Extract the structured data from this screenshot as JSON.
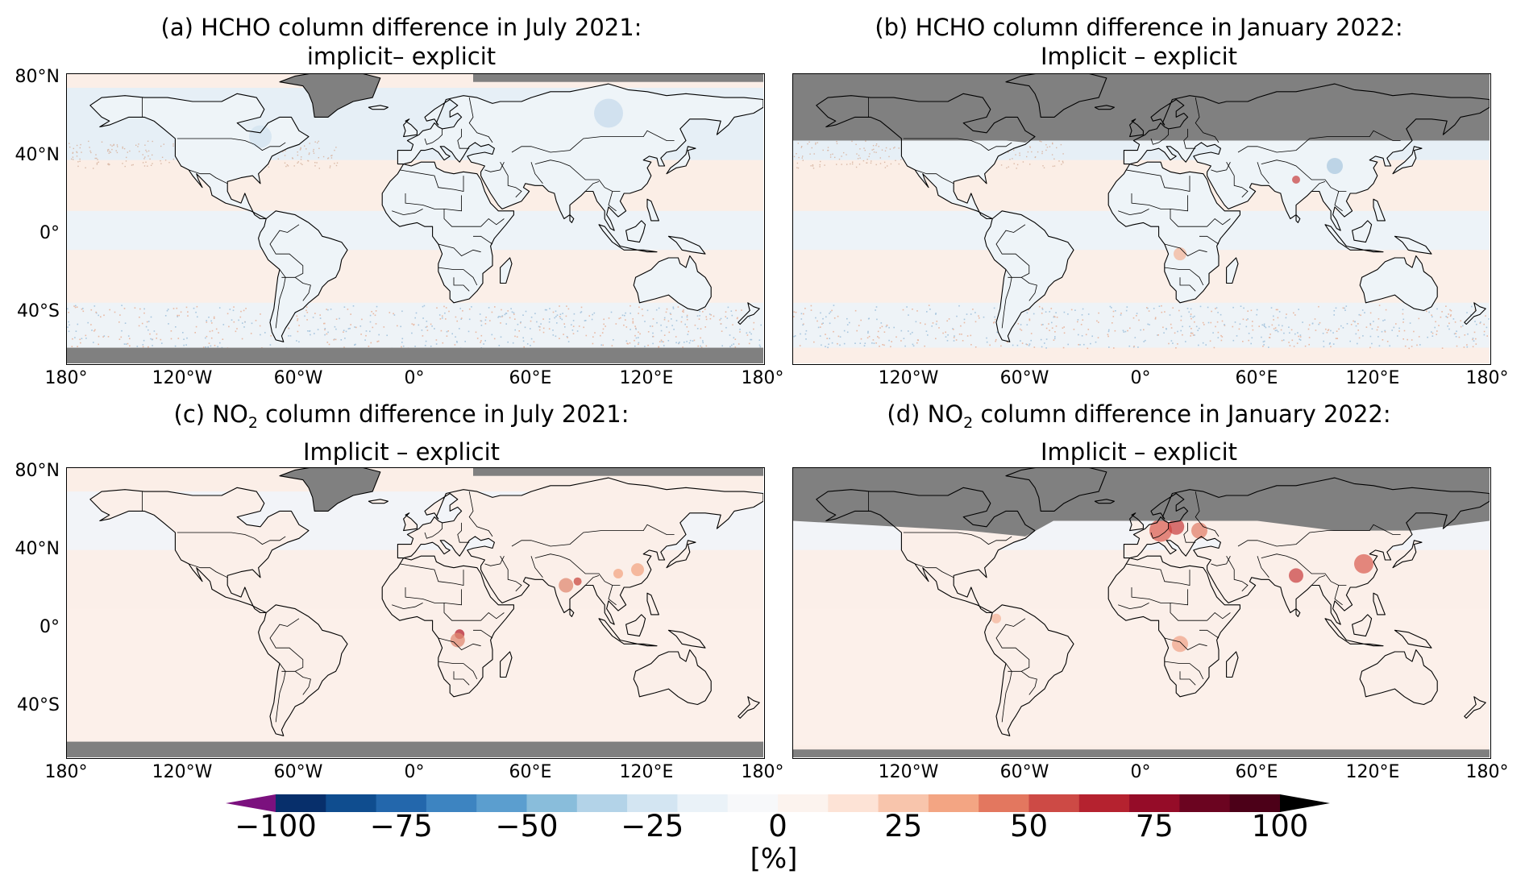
{
  "panels": [
    {
      "title_line1": "(a) HCHO column difference in July 2021:",
      "title_line2": "implicit– explicit",
      "lat_labels": [
        "80°N",
        "40°N",
        "0°",
        "40°S"
      ],
      "lon_labels": [
        "180°",
        "120°W",
        "60°W",
        "0°",
        "60°E",
        "120°E",
        "180°"
      ]
    },
    {
      "title_line1": "(b) HCHO column difference in January 2022:",
      "title_line2": "Implicit – explicit",
      "lat_labels": [],
      "lon_labels": [
        "120°W",
        "60°W",
        "0°",
        "60°E",
        "120°E",
        "180°"
      ]
    },
    {
      "title_pre": "(c) NO",
      "title_sub": "2",
      "title_post": " column difference in July 2021:",
      "title_line2": "Implicit – explicit",
      "lat_labels": [
        "80°N",
        "40°N",
        "0°",
        "40°S"
      ],
      "lon_labels": [
        "180°",
        "120°W",
        "60°W",
        "0°",
        "60°E",
        "120°E",
        "180°"
      ]
    },
    {
      "title_pre": "(d) NO",
      "title_sub": "2",
      "title_post": " column difference in January 2022:",
      "title_line2": "Implicit – explicit",
      "lat_labels": [],
      "lon_labels": [
        "120°W",
        "60°W",
        "0°",
        "60°E",
        "120°E",
        "180°"
      ]
    }
  ],
  "colorbar": {
    "label": "[%]",
    "ticks": [
      "−100",
      "−75",
      "−50",
      "−25",
      "0",
      "25",
      "50",
      "75",
      "100"
    ],
    "tick_values": [
      -100,
      -75,
      -50,
      -25,
      0,
      25,
      50,
      75,
      100
    ],
    "range": [
      -100,
      100
    ],
    "step": 10,
    "extend": "both",
    "under_color": "#7b117e",
    "over_color": "#000000",
    "colors": [
      "#072f6b",
      "#0f4d8f",
      "#2367ac",
      "#3d84c1",
      "#5b9ecf",
      "#89bddb",
      "#b3d3e8",
      "#d3e5f2",
      "#eaf2f8",
      "#f7f8fa",
      "#fcf3ee",
      "#fde3d6",
      "#f8c5ac",
      "#f3a583",
      "#e3775f",
      "#cd4a45",
      "#b5222f",
      "#950c28",
      "#6b0420",
      "#4c0018"
    ]
  },
  "map_style": {
    "missing_color": "#808080",
    "ocean_light_blue": "#ecf3f8",
    "ocean_light_red": "#fbeee7",
    "hotspot_red": "#c83a3a"
  }
}
